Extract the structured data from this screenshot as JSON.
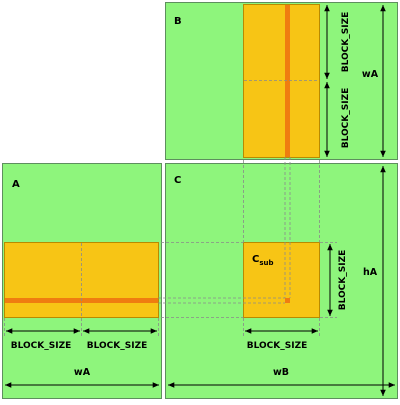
{
  "colors": {
    "matrix_fill": "#8ef57c",
    "matrix_stroke": "#5e8f5e",
    "block_fill": "#f7c515",
    "block_stroke": "#b98a00",
    "strip_fill": "#ef7d10",
    "guide_stroke": "#888888",
    "arrow": "#000000"
  },
  "matrices": {
    "a": {
      "label": "A"
    },
    "b": {
      "label": "B"
    },
    "c": {
      "label": "C"
    }
  },
  "csub": {
    "main": "C",
    "sub": "sub"
  },
  "dimensions": {
    "block_size": "BLOCK_SIZE",
    "wa": "wA",
    "wb": "wB",
    "ha": "hA"
  }
}
